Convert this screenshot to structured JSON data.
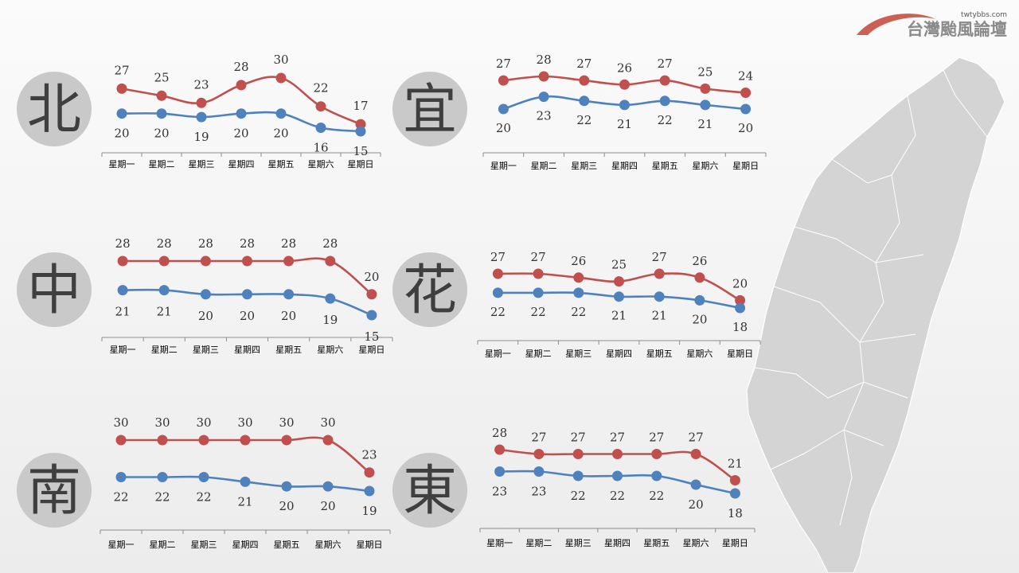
{
  "logo": {
    "url": "twtybbs.com",
    "name": "台灣颱風論壇",
    "accent": "#c0392b"
  },
  "colors": {
    "high": "#c0504d",
    "low": "#4f81bd"
  },
  "chart_data": [
    {
      "type": "line",
      "region": "北",
      "categories": [
        "星期一",
        "星期二",
        "星期三",
        "星期四",
        "星期五",
        "星期六",
        "星期日"
      ],
      "series": [
        {
          "values": [
            27,
            25,
            23,
            28,
            30,
            22,
            17
          ]
        },
        {
          "values": [
            20,
            20,
            19,
            20,
            20,
            16,
            15
          ]
        }
      ]
    },
    {
      "type": "line",
      "region": "宜",
      "categories": [
        "星期一",
        "星期二",
        "星期三",
        "星期四",
        "星期五",
        "星期六",
        "星期日"
      ],
      "series": [
        {
          "values": [
            27,
            28,
            27,
            26,
            27,
            25,
            24
          ]
        },
        {
          "values": [
            20,
            23,
            22,
            21,
            22,
            21,
            20
          ]
        }
      ]
    },
    {
      "type": "line",
      "region": "中",
      "categories": [
        "星期一",
        "星期二",
        "星期三",
        "星期四",
        "星期五",
        "星期六",
        "星期日"
      ],
      "series": [
        {
          "values": [
            28,
            28,
            28,
            28,
            28,
            28,
            20
          ]
        },
        {
          "values": [
            21,
            21,
            20,
            20,
            20,
            19,
            15
          ]
        }
      ]
    },
    {
      "type": "line",
      "region": "花",
      "categories": [
        "星期一",
        "星期二",
        "星期三",
        "星期四",
        "星期五",
        "星期六",
        "星期日"
      ],
      "series": [
        {
          "values": [
            27,
            27,
            26,
            25,
            27,
            26,
            20
          ]
        },
        {
          "values": [
            22,
            22,
            22,
            21,
            21,
            20,
            18
          ]
        }
      ]
    },
    {
      "type": "line",
      "region": "南",
      "categories": [
        "星期一",
        "星期二",
        "星期三",
        "星期四",
        "星期五",
        "星期六",
        "星期日"
      ],
      "series": [
        {
          "values": [
            30,
            30,
            30,
            30,
            30,
            30,
            23
          ]
        },
        {
          "values": [
            22,
            22,
            22,
            21,
            20,
            20,
            19
          ]
        }
      ]
    },
    {
      "type": "line",
      "region": "東",
      "categories": [
        "星期一",
        "星期二",
        "星期三",
        "星期四",
        "星期五",
        "星期六",
        "星期日"
      ],
      "series": [
        {
          "values": [
            28,
            27,
            27,
            27,
            27,
            27,
            21
          ]
        },
        {
          "values": [
            23,
            23,
            22,
            22,
            22,
            20,
            18
          ]
        }
      ]
    }
  ]
}
